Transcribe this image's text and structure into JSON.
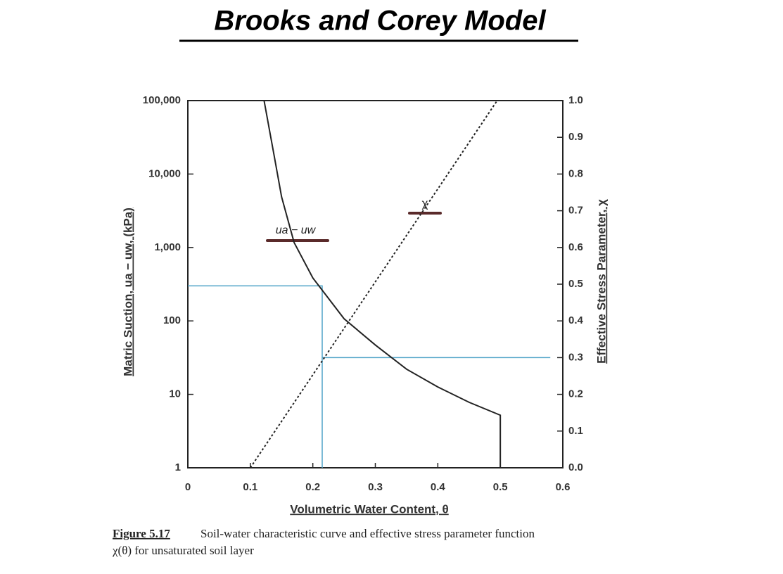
{
  "chart_data": {
    "type": "line",
    "title": "Brooks and Corey Model",
    "x_label": "Volumetric Water Content, θ",
    "y_label": "Matric Suction, ua − uw, (kPa)",
    "y2_label": "Effective Stress Parameter, χ",
    "annotations": [
      "ua − uw",
      "χ"
    ],
    "caption_label": "Figure 5.17",
    "caption_text": [
      "Soil-water characteristic curve and effective stress parameter function",
      "χ(θ) for unsaturated soil layer"
    ],
    "xlim": [
      0,
      0.6
    ],
    "xticks": [
      0,
      0.1,
      0.2,
      0.3,
      0.4,
      0.5,
      0.6
    ],
    "ylim": [
      1,
      100000
    ],
    "log_y": true,
    "yticks": [
      1,
      10,
      100,
      {
        "value": 1000,
        "label": "1,000"
      },
      {
        "value": 10000,
        "label": "10,000"
      },
      {
        "value": 100000,
        "label": "100,000"
      }
    ],
    "y2lim": [
      0,
      1
    ],
    "y2ticks": [
      {
        "value": 0,
        "label": "0.0"
      },
      0.1,
      0.2,
      0.3,
      0.4,
      0.5,
      0.6,
      0.7,
      0.8,
      0.9,
      {
        "value": 1,
        "label": "1.0"
      }
    ],
    "series": [
      {
        "color": "#222222",
        "dash": false,
        "x": [
          0.122,
          0.138,
          0.15,
          0.17,
          0.2,
          0.25,
          0.3,
          0.35,
          0.4,
          0.45,
          0.5,
          0.5
        ],
        "values": [
          100000,
          18000,
          4900,
          1170,
          385,
          107,
          47,
          22,
          12.6,
          7.8,
          5.2,
          1
        ]
      },
      {
        "color": "#222222",
        "dash": true,
        "axis": "y2",
        "x": [
          0.1,
          0.495
        ],
        "values": [
          0,
          1
        ]
      }
    ],
    "guides": [
      {
        "color": "#4fa3c7",
        "x": [
          0,
          0.215,
          0.215
        ],
        "values": [
          300,
          300,
          1
        ]
      },
      {
        "color": "#4fa3c7",
        "axis": "y2",
        "x": [
          0.215,
          0.58
        ],
        "values": [
          0.3,
          0.3
        ]
      }
    ]
  }
}
